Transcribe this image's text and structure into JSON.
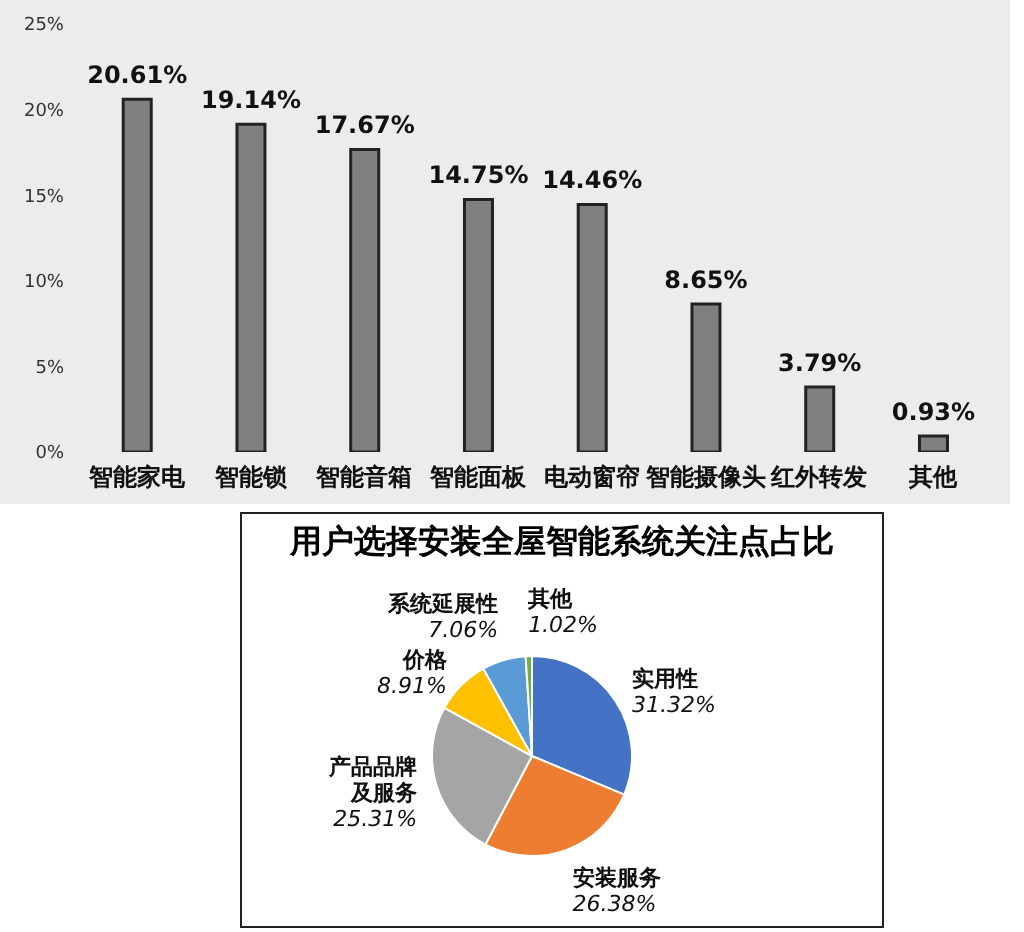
{
  "chart_data": [
    {
      "type": "bar",
      "categories": [
        "智能家电",
        "智能锁",
        "智能音箱",
        "智能面板",
        "电动窗帘",
        "智能摄像头",
        "红外转发",
        "其他"
      ],
      "values": [
        20.61,
        19.14,
        17.67,
        14.75,
        14.46,
        8.65,
        3.79,
        0.93
      ],
      "value_labels": [
        "20.61%",
        "19.14%",
        "17.67%",
        "14.75%",
        "14.46%",
        "8.65%",
        "3.79%",
        "0.93%"
      ],
      "color": "#808080",
      "ylim": [
        0,
        25
      ],
      "yticks": [
        {
          "value": 0,
          "label": "0%"
        },
        {
          "value": 5,
          "label": "5%"
        },
        {
          "value": 10,
          "label": "10%"
        },
        {
          "value": 15,
          "label": "15%"
        },
        {
          "value": 20,
          "label": "20%"
        },
        {
          "value": 25,
          "label": "25%"
        }
      ]
    },
    {
      "type": "pie",
      "title": "用户选择安装全屋智能系统关注点占比",
      "categories": [
        "实用性",
        "安装服务",
        "产品品牌及服务",
        "价格",
        "系统延展性",
        "其他"
      ],
      "values": [
        31.32,
        26.38,
        25.31,
        8.91,
        7.06,
        1.02
      ],
      "value_labels": [
        "31.32%",
        "26.38%",
        "25.31%",
        "8.91%",
        "7.06%",
        "1.02%"
      ],
      "colors": [
        "#4472c4",
        "#ed7d31",
        "#a5a5a5",
        "#ffc000",
        "#5b9bd5",
        "#70ad47"
      ]
    }
  ]
}
